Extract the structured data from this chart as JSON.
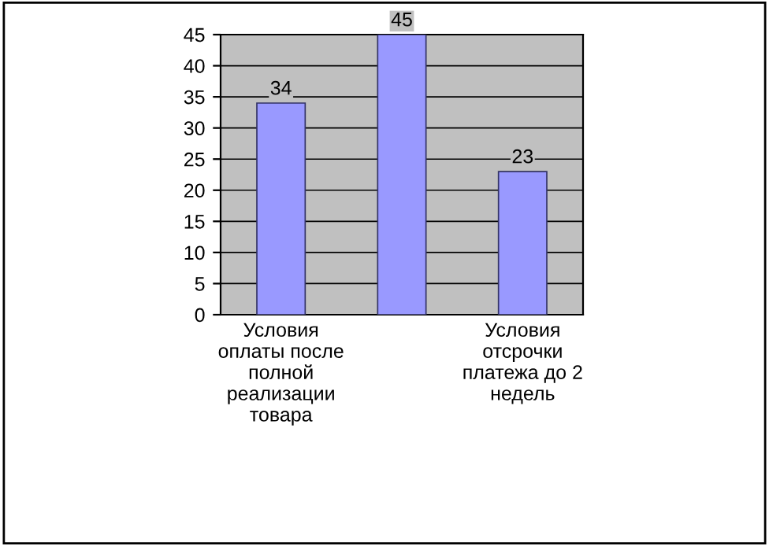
{
  "chart_data": {
    "type": "bar",
    "categories": [
      "Условия оплаты после полной реализации товара",
      null,
      "Условия отсрочки платежа до 2 недель"
    ],
    "values": [
      34,
      45,
      23
    ],
    "color": "#9999ff",
    "ylim": [
      0,
      45
    ],
    "yticks": [
      0,
      5,
      10,
      15,
      20,
      25,
      30,
      35,
      40,
      45
    ],
    "grid": "y",
    "data_labels": true
  }
}
